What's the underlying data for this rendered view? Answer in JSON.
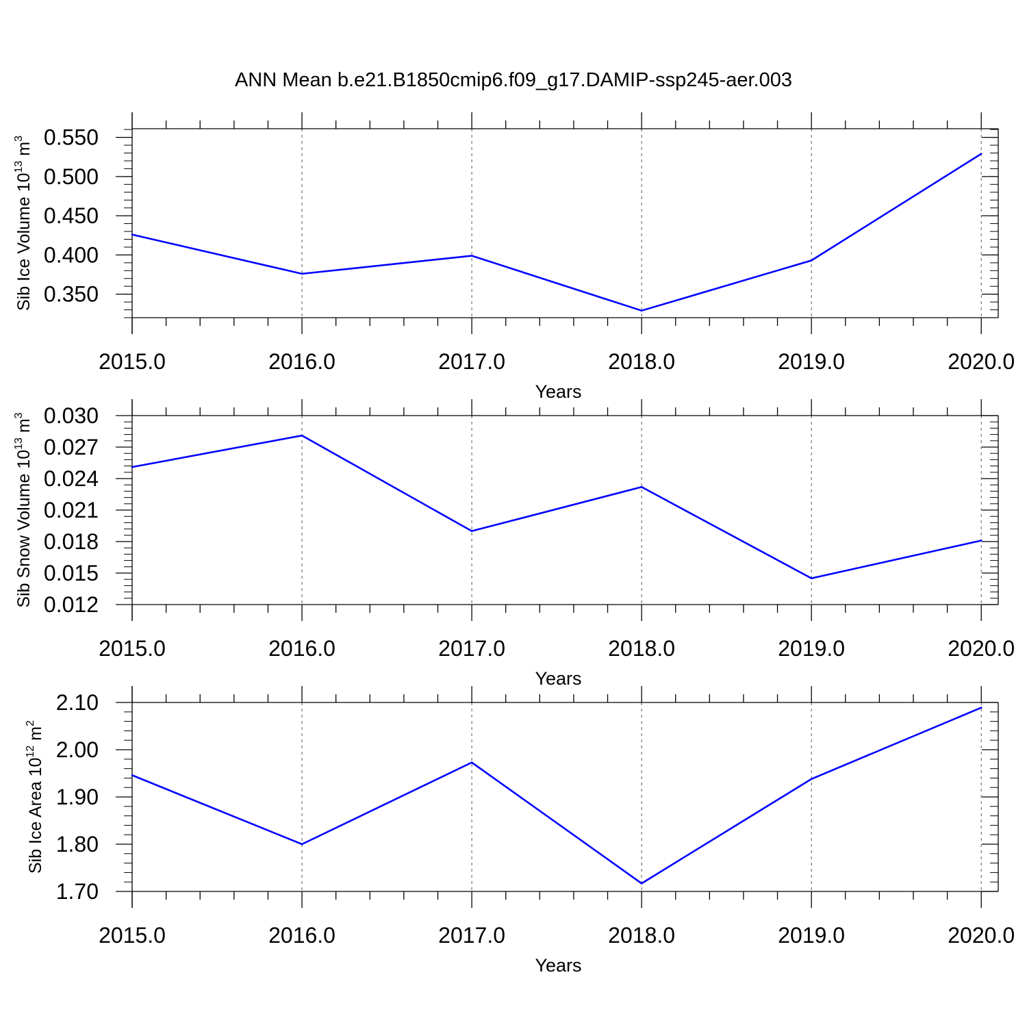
{
  "title": "ANN Mean b.e21.B1850cmip6.f09_g17.DAMIP-ssp245-aer.003",
  "colors": {
    "series": "#0000ff",
    "axis": "#000000",
    "grid": "#555555"
  },
  "chart_data": [
    {
      "type": "line",
      "xlabel": "Years",
      "ylabel": {
        "prefix": "Sib Ice Volume 10",
        "exponent": "13",
        "unit": " m",
        "unit_exponent": "3"
      },
      "x": [
        2015,
        2016,
        2017,
        2018,
        2019,
        2020
      ],
      "x_tick_labels": [
        "2015.0",
        "2016.0",
        "2017.0",
        "2018.0",
        "2019.0",
        "2020.0"
      ],
      "series": [
        {
          "values": [
            0.426,
            0.376,
            0.399,
            0.329,
            0.393,
            0.529
          ]
        }
      ],
      "xlim": [
        2015,
        2020.1
      ],
      "ylim": [
        0.32,
        0.561
      ],
      "y_ticks": [
        0.35,
        0.4,
        0.45,
        0.5,
        0.55
      ],
      "y_tick_labels": [
        "0.350",
        "0.400",
        "0.450",
        "0.500",
        "0.550"
      ],
      "y_minor_step": 0.01,
      "grid": "vertical-dashed"
    },
    {
      "type": "line",
      "xlabel": "Years",
      "ylabel": {
        "prefix": "Sib Snow Volume 10",
        "exponent": "13",
        "unit": " m",
        "unit_exponent": "3"
      },
      "x": [
        2015,
        2016,
        2017,
        2018,
        2019,
        2020
      ],
      "x_tick_labels": [
        "2015.0",
        "2016.0",
        "2017.0",
        "2018.0",
        "2019.0",
        "2020.0"
      ],
      "series": [
        {
          "values": [
            0.0251,
            0.0281,
            0.019,
            0.0232,
            0.0145,
            0.0181
          ]
        }
      ],
      "xlim": [
        2015,
        2020.1
      ],
      "ylim": [
        0.012,
        0.03
      ],
      "y_ticks": [
        0.012,
        0.015,
        0.018,
        0.021,
        0.024,
        0.027,
        0.03
      ],
      "y_tick_labels": [
        "0.012",
        "0.015",
        "0.018",
        "0.021",
        "0.024",
        "0.027",
        "0.030"
      ],
      "y_minor_step": 0.0006,
      "grid": "vertical-dashed"
    },
    {
      "type": "line",
      "xlabel": "Years",
      "ylabel": {
        "prefix": "Sib Ice Area 10",
        "exponent": "12",
        "unit": " m",
        "unit_exponent": "2"
      },
      "x": [
        2015,
        2016,
        2017,
        2018,
        2019,
        2020
      ],
      "x_tick_labels": [
        "2015.0",
        "2016.0",
        "2017.0",
        "2018.0",
        "2019.0",
        "2020.0"
      ],
      "series": [
        {
          "values": [
            1.946,
            1.8,
            1.973,
            1.717,
            1.938,
            2.089
          ]
        }
      ],
      "xlim": [
        2015,
        2020.1
      ],
      "ylim": [
        1.7,
        2.1
      ],
      "y_ticks": [
        1.7,
        1.8,
        1.9,
        2.0,
        2.1
      ],
      "y_tick_labels": [
        "1.70",
        "1.80",
        "1.90",
        "2.00",
        "2.10"
      ],
      "y_minor_step": 0.02,
      "grid": "vertical-dashed"
    }
  ]
}
